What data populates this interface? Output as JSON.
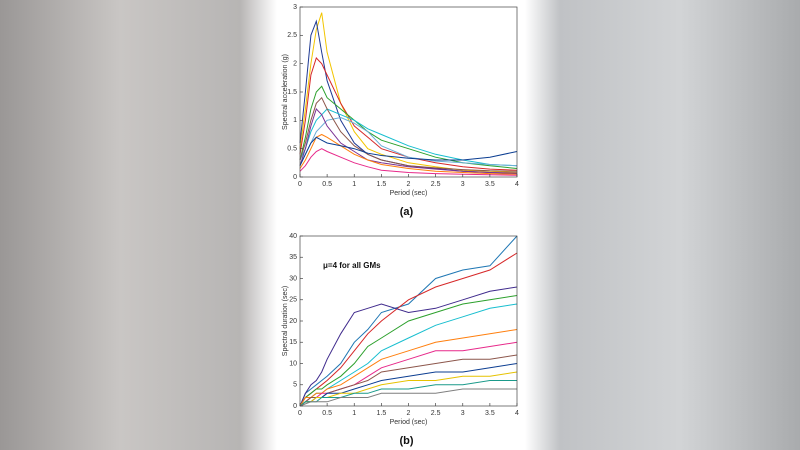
{
  "chart_data": [
    {
      "type": "line",
      "xlabel": "Period (sec)",
      "ylabel": "Spectral acceleration (g)",
      "label": "(a)",
      "x": [
        0,
        0.1,
        0.2,
        0.3,
        0.4,
        0.5,
        0.75,
        1,
        1.25,
        1.5,
        2,
        2.5,
        3,
        3.5,
        4
      ],
      "xlim": [
        0,
        4
      ],
      "xticks": [
        0,
        0.5,
        1,
        1.5,
        2,
        2.5,
        3,
        3.5,
        4
      ],
      "ylim": [
        0,
        3
      ],
      "yticks": [
        0,
        0.5,
        1,
        1.5,
        2,
        2.5,
        3
      ],
      "grid": false,
      "series": [
        {
          "color": "#f2c500",
          "values": [
            0.5,
            1.2,
            2.0,
            2.6,
            2.9,
            2.2,
            1.3,
            0.8,
            0.5,
            0.4,
            0.25,
            0.18,
            0.12,
            0.1,
            0.08
          ]
        },
        {
          "color": "#1f3a93",
          "values": [
            0.6,
            1.5,
            2.5,
            2.75,
            2.2,
            1.7,
            1.0,
            0.6,
            0.4,
            0.3,
            0.2,
            0.15,
            0.1,
            0.08,
            0.06
          ]
        },
        {
          "color": "#d62728",
          "values": [
            0.4,
            1.0,
            1.8,
            2.1,
            2.0,
            1.8,
            1.3,
            0.9,
            0.7,
            0.5,
            0.35,
            0.25,
            0.18,
            0.14,
            0.12
          ]
        },
        {
          "color": "#2ca02c",
          "values": [
            0.3,
            0.7,
            1.2,
            1.5,
            1.6,
            1.4,
            1.2,
            1.0,
            0.8,
            0.65,
            0.5,
            0.35,
            0.25,
            0.2,
            0.15
          ]
        },
        {
          "color": "#17becf",
          "values": [
            0.3,
            0.5,
            0.8,
            1.0,
            1.1,
            1.2,
            1.1,
            1.0,
            0.85,
            0.75,
            0.55,
            0.4,
            0.3,
            0.22,
            0.2
          ]
        },
        {
          "color": "#6baed6",
          "values": [
            0.2,
            0.4,
            0.6,
            0.8,
            0.9,
            1.0,
            1.05,
            0.95,
            0.8,
            0.55,
            0.35,
            0.28,
            0.25,
            0.22,
            0.2
          ]
        },
        {
          "color": "#7b3294",
          "values": [
            0.2,
            0.5,
            0.9,
            1.2,
            1.1,
            0.9,
            0.6,
            0.45,
            0.3,
            0.25,
            0.18,
            0.14,
            0.1,
            0.08,
            0.07
          ]
        },
        {
          "color": "#ff7f0e",
          "values": [
            0.15,
            0.3,
            0.5,
            0.7,
            0.75,
            0.7,
            0.55,
            0.4,
            0.3,
            0.22,
            0.15,
            0.1,
            0.08,
            0.06,
            0.05
          ]
        },
        {
          "color": "#e7298a",
          "values": [
            0.1,
            0.2,
            0.35,
            0.45,
            0.5,
            0.45,
            0.35,
            0.25,
            0.18,
            0.12,
            0.08,
            0.06,
            0.05,
            0.04,
            0.03
          ]
        },
        {
          "color": "#8c564b",
          "values": [
            0.3,
            0.6,
            1.0,
            1.3,
            1.4,
            1.2,
            0.8,
            0.55,
            0.4,
            0.3,
            0.2,
            0.16,
            0.13,
            0.11,
            0.1
          ]
        },
        {
          "color": "#0b3d91",
          "values": [
            0.2,
            0.4,
            0.6,
            0.7,
            0.65,
            0.6,
            0.55,
            0.5,
            0.42,
            0.38,
            0.33,
            0.3,
            0.3,
            0.35,
            0.45
          ]
        }
      ]
    },
    {
      "type": "line",
      "xlabel": "Period (sec)",
      "ylabel": "Spectral duration (sec)",
      "label": "(b)",
      "annotation": "μ=4 for all GMs",
      "x": [
        0,
        0.1,
        0.2,
        0.3,
        0.4,
        0.5,
        0.75,
        1,
        1.25,
        1.5,
        2,
        2.5,
        3,
        3.5,
        4
      ],
      "xlim": [
        0,
        4
      ],
      "xticks": [
        0,
        0.5,
        1,
        1.5,
        2,
        2.5,
        3,
        3.5,
        4
      ],
      "ylim": [
        0,
        40
      ],
      "yticks": [
        0,
        5,
        10,
        15,
        20,
        25,
        30,
        35,
        40
      ],
      "grid": false,
      "series": [
        {
          "color": "#1f77b4",
          "values": [
            0,
            3,
            4,
            5,
            6,
            7,
            10,
            15,
            18,
            22,
            24,
            30,
            32,
            33,
            40
          ]
        },
        {
          "color": "#d62728",
          "values": [
            0,
            2,
            3,
            4,
            5,
            6,
            9,
            13,
            17,
            20,
            25,
            28,
            30,
            32,
            36
          ]
        },
        {
          "color": "#3f2a8c",
          "values": [
            0,
            3,
            5,
            6,
            8,
            11,
            17,
            22,
            23,
            24,
            22,
            23,
            25,
            27,
            28
          ]
        },
        {
          "color": "#2ca02c",
          "values": [
            0,
            2,
            3,
            4,
            4,
            5,
            7,
            10,
            14,
            16,
            20,
            22,
            24,
            25,
            26
          ]
        },
        {
          "color": "#17becf",
          "values": [
            0,
            1,
            2,
            3,
            3,
            4,
            6,
            8,
            10,
            13,
            16,
            19,
            21,
            23,
            24
          ]
        },
        {
          "color": "#ff7f0e",
          "values": [
            0,
            2,
            2,
            3,
            3,
            4,
            5,
            7,
            9,
            11,
            13,
            15,
            16,
            17,
            18
          ]
        },
        {
          "color": "#e7298a",
          "values": [
            0,
            1,
            2,
            2,
            3,
            3,
            4,
            5,
            7,
            9,
            11,
            13,
            13,
            14,
            15
          ]
        },
        {
          "color": "#8c564b",
          "values": [
            0,
            1,
            2,
            2,
            2,
            3,
            4,
            5,
            6,
            8,
            9,
            10,
            11,
            11,
            12
          ]
        },
        {
          "color": "#0b3d91",
          "values": [
            0,
            1,
            1,
            2,
            2,
            3,
            3,
            4,
            5,
            6,
            7,
            8,
            8,
            9,
            10
          ]
        },
        {
          "color": "#e6c200",
          "values": [
            0,
            1,
            1,
            2,
            2,
            2,
            3,
            3,
            4,
            5,
            6,
            6,
            7,
            7,
            8
          ]
        },
        {
          "color": "#1a9a8a",
          "values": [
            0,
            1,
            1,
            1,
            2,
            2,
            2,
            3,
            3,
            4,
            4,
            5,
            5,
            6,
            6
          ]
        },
        {
          "color": "#7f7f7f",
          "values": [
            0,
            0.5,
            1,
            1,
            1,
            1,
            2,
            2,
            2,
            3,
            3,
            3,
            4,
            4,
            4
          ]
        }
      ]
    }
  ]
}
